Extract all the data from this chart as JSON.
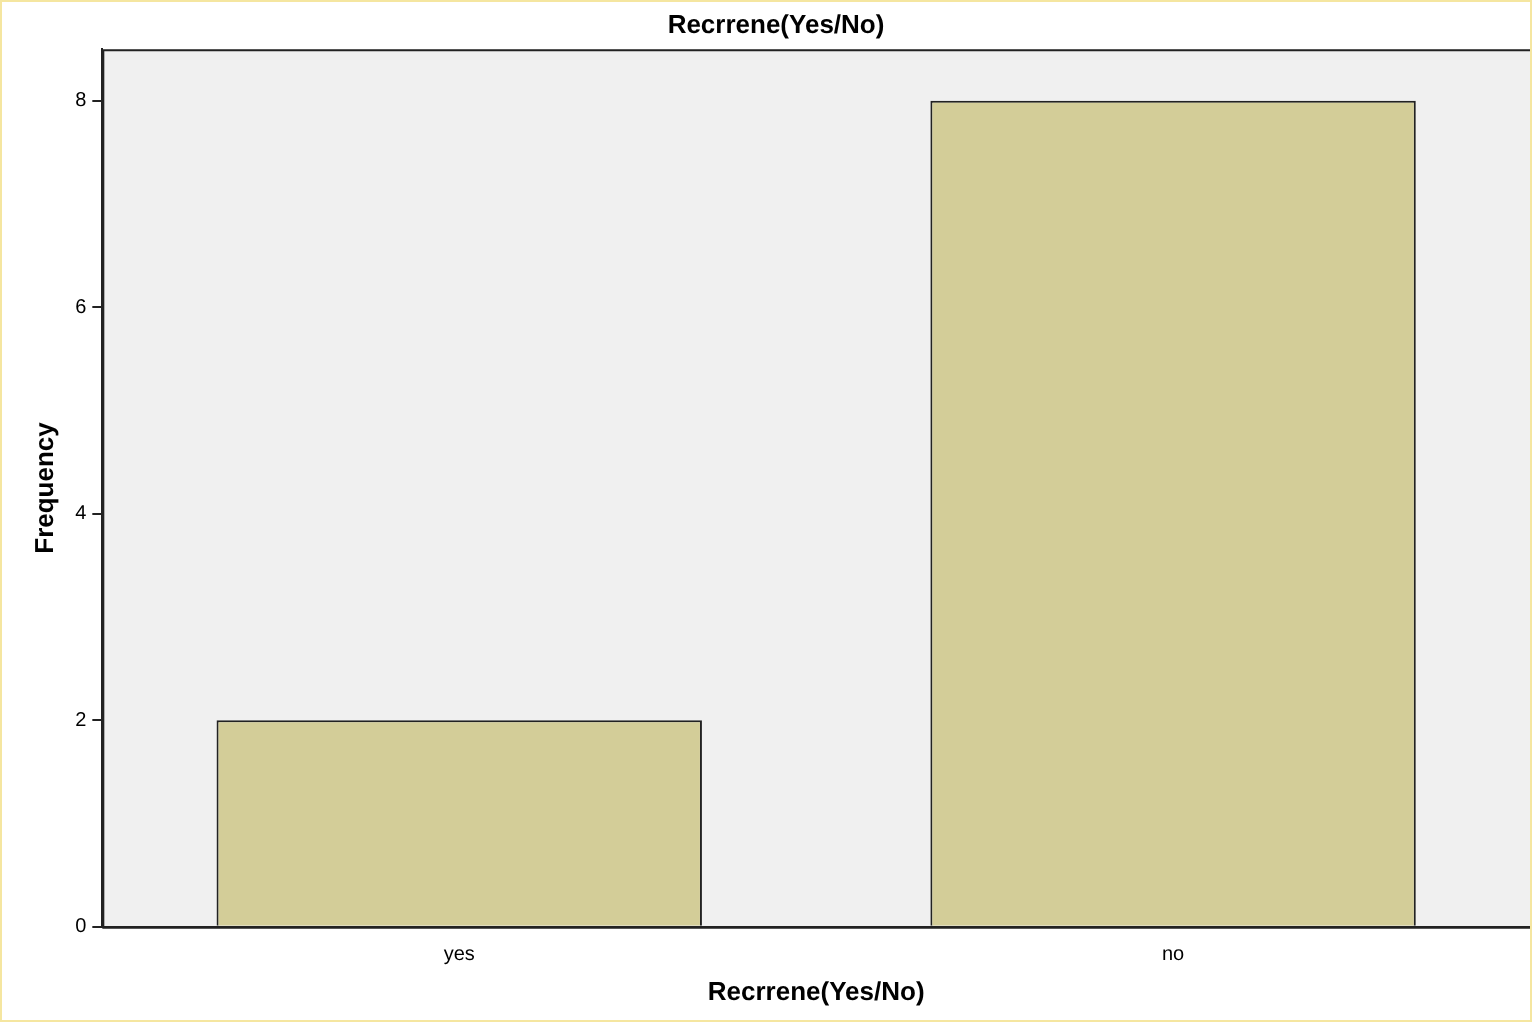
{
  "chart_data": {
    "type": "bar",
    "title": "Recrrene(Yes/No)",
    "xlabel": "Recrrene(Yes/No)",
    "ylabel": "Frequency",
    "categories": [
      "yes",
      "no"
    ],
    "values": [
      2,
      8
    ],
    "color": "#d3cd98",
    "ylim": [
      0,
      8.5
    ],
    "yticks": [
      0,
      2,
      4,
      6,
      8
    ],
    "grid": false
  }
}
